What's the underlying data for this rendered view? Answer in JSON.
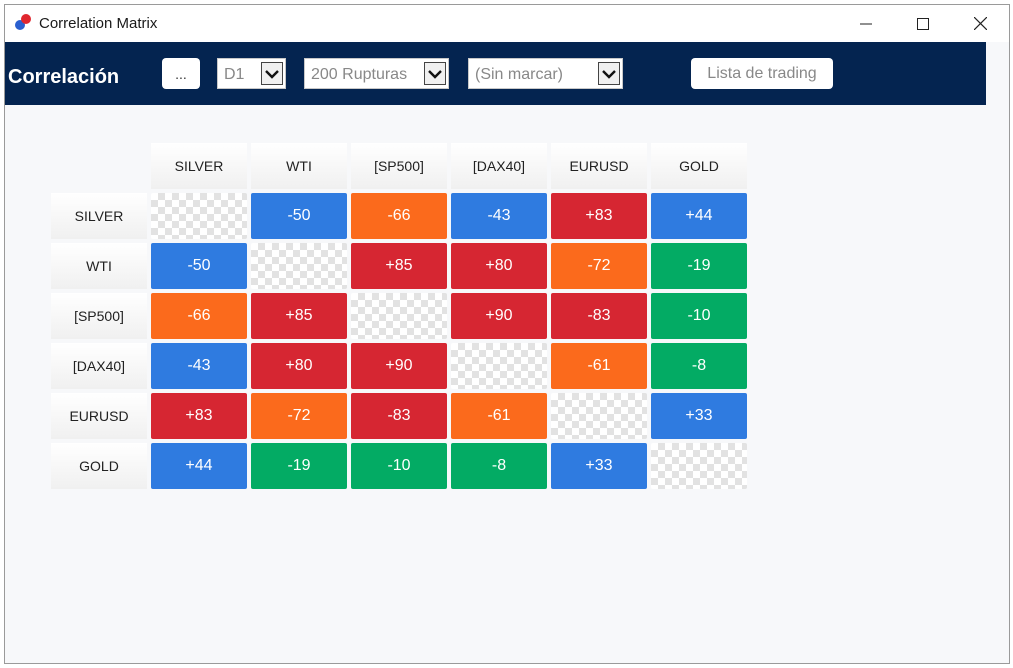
{
  "window": {
    "title": "Correlation Matrix"
  },
  "toolbar": {
    "title": "Correlación",
    "dots_label": "...",
    "timeframe": "D1",
    "bars": "200 Rupturas",
    "marking": "(Sin marcar)",
    "trading_list_label": "Lista de trading"
  },
  "colors": {
    "toolbar_bg": "#042450",
    "blue": "#2f7be0",
    "orange": "#fb6a1c",
    "red": "#d62632",
    "green": "#03ab64"
  },
  "matrix": {
    "symbols": [
      "SILVER",
      "WTI",
      "[SP500]",
      "[DAX40]",
      "EURUSD",
      "GOLD"
    ],
    "values": [
      [
        "",
        "-50",
        "-66",
        "-43",
        "+83",
        "+44"
      ],
      [
        "-50",
        "",
        "+85",
        "+80",
        "-72",
        "-19"
      ],
      [
        "-66",
        "+85",
        "",
        "+90",
        "-83",
        "-10"
      ],
      [
        "-43",
        "+80",
        "+90",
        "",
        "-61",
        "-8"
      ],
      [
        "+83",
        "-72",
        "-83",
        "-61",
        "",
        "+33"
      ],
      [
        "+44",
        "-19",
        "-10",
        "-8",
        "+33",
        ""
      ]
    ],
    "cell_colors": [
      [
        "checker",
        "blue",
        "orange",
        "blue",
        "red",
        "blue"
      ],
      [
        "blue",
        "checker",
        "red",
        "red",
        "orange",
        "green"
      ],
      [
        "orange",
        "red",
        "checker",
        "red",
        "red",
        "green"
      ],
      [
        "blue",
        "red",
        "red",
        "checker",
        "orange",
        "green"
      ],
      [
        "red",
        "orange",
        "red",
        "orange",
        "checker",
        "blue"
      ],
      [
        "blue",
        "green",
        "green",
        "green",
        "blue",
        "checker"
      ]
    ]
  }
}
